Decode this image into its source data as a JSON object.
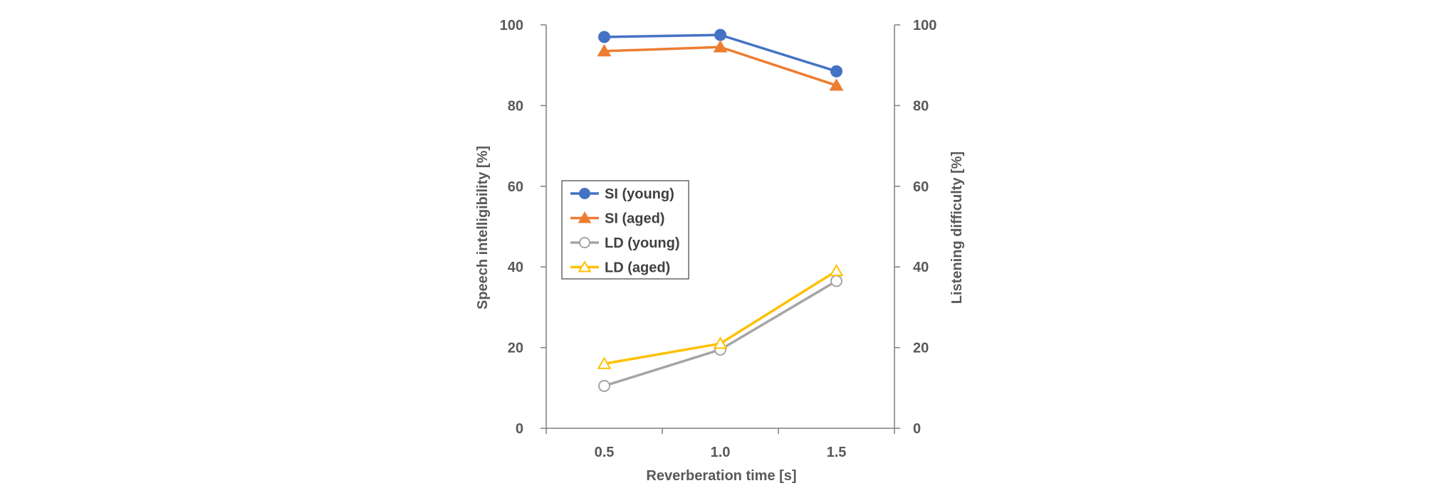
{
  "chart_data": {
    "type": "line",
    "xlabel": "Reverberation time [s]",
    "ylabel_left": "Speech intelligibility [%]",
    "ylabel_right": "Listening difficulty [%]",
    "x": [
      0.5,
      1.0,
      1.5
    ],
    "x_tick_labels": [
      "0.5",
      "1.0",
      "1.5"
    ],
    "xlim": [
      0.25,
      1.75
    ],
    "ylim": [
      0,
      100
    ],
    "y_ticks": [
      0,
      20,
      40,
      60,
      80,
      100
    ],
    "y_tick_labels": [
      "0",
      "20",
      "40",
      "60",
      "80",
      "100"
    ],
    "grid": false,
    "legend_position": "middle-left",
    "series": [
      {
        "name": "SI (young)",
        "values": [
          97,
          97.5,
          88.5
        ],
        "color": "#4472C4",
        "marker": "circle",
        "filled": true
      },
      {
        "name": "SI (aged)",
        "values": [
          93.5,
          94.5,
          85
        ],
        "color": "#ED7D31",
        "marker": "triangle",
        "filled": true
      },
      {
        "name": "LD (young)",
        "values": [
          10.5,
          19.5,
          36.5
        ],
        "color": "#A5A5A5",
        "marker": "circle",
        "filled": false
      },
      {
        "name": "LD (aged)",
        "values": [
          16,
          21,
          39
        ],
        "color": "#FFC000",
        "marker": "triangle",
        "filled": false
      }
    ]
  }
}
